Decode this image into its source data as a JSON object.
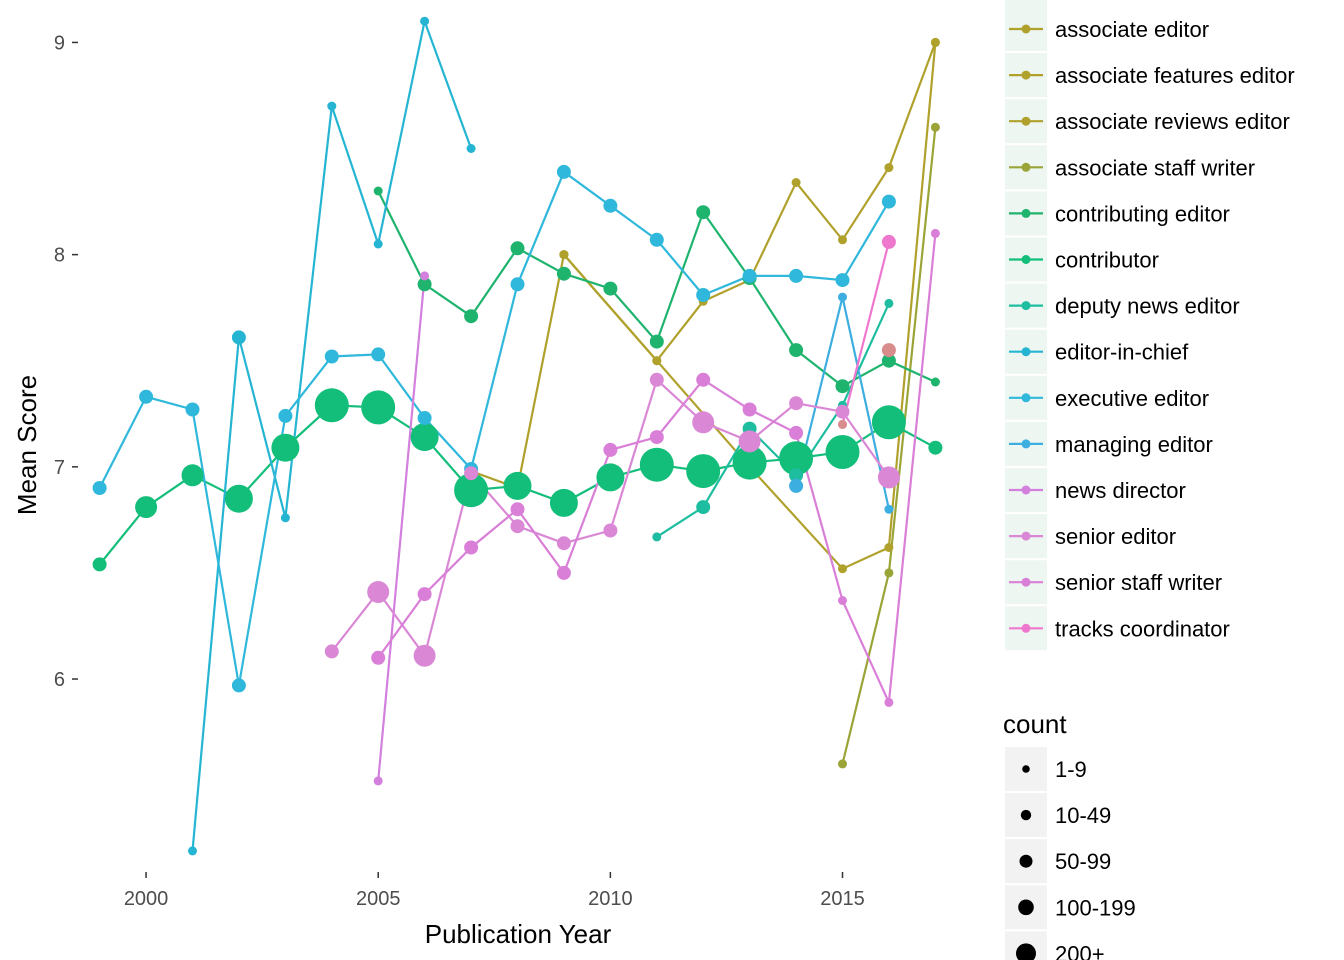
{
  "chart_data": {
    "type": "line",
    "xlabel": "Publication Year",
    "ylabel": "Mean Score",
    "xlim": [
      1998.9,
      2017.1
    ],
    "ylim": [
      5.1,
      9.2
    ],
    "xticks": [
      2000,
      2005,
      2010,
      2015
    ],
    "yticks": [
      6,
      7,
      8,
      9
    ],
    "grid": false,
    "legend_position": "right",
    "size_legend": {
      "title": "count",
      "entries": [
        "1-9",
        "10-49",
        "50-99",
        "100-199",
        "200+"
      ]
    },
    "series": [
      {
        "name": "associate editor",
        "color": "#B0A12D",
        "x": [
          2009,
          2011,
          2013,
          2015,
          2016,
          2017
        ],
        "y": [
          8.0,
          7.5,
          7.0,
          6.52,
          6.62,
          9.0
        ],
        "size": [
          1,
          1,
          1,
          1,
          1,
          1
        ]
      },
      {
        "name": "associate features editor",
        "color": "#B0A12D",
        "x": [
          2009,
          2011,
          2012,
          2013,
          2014,
          2015,
          2016,
          2017
        ],
        "y": [
          8.0,
          7.5,
          7.78,
          7.88,
          8.34,
          8.07,
          8.41,
          9.0
        ],
        "size": [
          1,
          1,
          1,
          1,
          1,
          1,
          1,
          1
        ]
      },
      {
        "name": "associate reviews editor",
        "color": "#B0A12D",
        "x": [
          2007,
          2008,
          2009
        ],
        "y": [
          6.98,
          6.9,
          8.0
        ],
        "size": [
          1,
          1,
          1
        ]
      },
      {
        "name": "associate staff writer",
        "color": "#9AA437",
        "x": [
          2015,
          2016,
          2017
        ],
        "y": [
          5.6,
          6.5,
          8.6
        ],
        "size": [
          1,
          1,
          1
        ]
      },
      {
        "name": "contributing editor",
        "color": "#1FB46E",
        "x": [
          2005,
          2006,
          2007,
          2008,
          2009,
          2010,
          2011,
          2012,
          2013,
          2014,
          2015,
          2016,
          2017
        ],
        "y": [
          8.3,
          7.86,
          7.71,
          8.03,
          7.91,
          7.84,
          7.59,
          8.2,
          7.89,
          7.55,
          7.38,
          7.5,
          7.4
        ],
        "size": [
          1,
          2,
          2,
          2,
          2,
          2,
          2,
          2,
          2,
          2,
          2,
          2,
          1
        ]
      },
      {
        "name": "contributor",
        "color": "#13BE7A",
        "x": [
          1999,
          2000,
          2001,
          2002,
          2003,
          2004,
          2005,
          2006,
          2007,
          2008,
          2009,
          2010,
          2011,
          2012,
          2013,
          2014,
          2015,
          2016,
          2017
        ],
        "y": [
          6.54,
          6.81,
          6.96,
          6.85,
          7.09,
          7.29,
          7.28,
          7.14,
          6.89,
          6.91,
          6.83,
          6.95,
          7.01,
          6.98,
          7.02,
          7.04,
          7.07,
          7.21,
          7.09
        ],
        "size": [
          2,
          3,
          3,
          4,
          4,
          5,
          5,
          4,
          5,
          4,
          4,
          4,
          5,
          5,
          5,
          5,
          5,
          5,
          2
        ]
      },
      {
        "name": "deputy news editor",
        "color": "#1EBDA0",
        "x": [
          2011,
          2012,
          2013,
          2014,
          2015,
          2016
        ],
        "y": [
          6.67,
          6.81,
          7.18,
          6.96,
          7.29,
          7.77
        ],
        "size": [
          1,
          2,
          2,
          2,
          1,
          1
        ]
      },
      {
        "name": "editor-in-chief",
        "color": "#25B5D3",
        "x": [
          2001,
          2002,
          2003,
          2004,
          2005,
          2006,
          2007
        ],
        "y": [
          5.19,
          7.61,
          6.76,
          8.7,
          8.05,
          9.1,
          8.5
        ],
        "size": [
          1,
          2,
          1,
          1,
          1,
          1,
          1
        ]
      },
      {
        "name": "executive editor",
        "color": "#2FB8DB",
        "x": [
          1999,
          2000,
          2001,
          2002,
          2003,
          2004,
          2005,
          2006,
          2007,
          2008,
          2009,
          2010,
          2011,
          2012,
          2013,
          2014,
          2015,
          2016
        ],
        "y": [
          6.9,
          7.33,
          7.27,
          5.97,
          7.24,
          7.52,
          7.53,
          7.23,
          6.99,
          7.86,
          8.39,
          8.23,
          8.07,
          7.81,
          7.9,
          7.9,
          7.88,
          8.25
        ],
        "size": [
          2,
          2,
          2,
          2,
          2,
          2,
          2,
          2,
          2,
          2,
          2,
          2,
          2,
          2,
          2,
          2,
          2,
          2
        ]
      },
      {
        "name": "managing editor",
        "color": "#3DAEE0",
        "x": [
          2014,
          2015,
          2016
        ],
        "y": [
          6.91,
          7.8,
          6.8
        ],
        "size": [
          2,
          1,
          1
        ]
      },
      {
        "name": "news director",
        "color": "#D37FDE",
        "x": [
          2005,
          2006
        ],
        "y": [
          5.52,
          7.9
        ],
        "size": [
          1,
          1
        ]
      },
      {
        "name": "senior editor",
        "color": "#DA88D6",
        "x": [
          2004,
          2005,
          2006,
          2007,
          2008,
          2009,
          2010,
          2011,
          2012,
          2013,
          2014,
          2015,
          2016
        ],
        "y": [
          6.13,
          6.41,
          6.11,
          6.97,
          6.72,
          6.64,
          6.7,
          7.41,
          7.21,
          7.12,
          7.3,
          7.26,
          6.95
        ],
        "size": [
          2,
          3,
          3,
          2,
          2,
          2,
          2,
          2,
          3,
          3,
          2,
          2,
          3
        ]
      },
      {
        "name": "senior staff writer",
        "color": "#DA7FD8",
        "x": [
          2005,
          2006,
          2007,
          2008,
          2009,
          2010,
          2011,
          2012,
          2013,
          2014,
          2015,
          2016,
          2017
        ],
        "y": [
          6.1,
          6.4,
          6.62,
          6.8,
          6.5,
          7.08,
          7.14,
          7.41,
          7.27,
          7.16,
          6.37,
          5.89,
          8.1
        ],
        "size": [
          2,
          2,
          2,
          2,
          2,
          2,
          2,
          2,
          2,
          2,
          1,
          1,
          1
        ]
      },
      {
        "name": "tracks coordinator",
        "color": "#EF78CF",
        "x": [
          2015,
          2016
        ],
        "y": [
          7.2,
          8.06
        ],
        "size": [
          1,
          2
        ]
      }
    ],
    "extra_points": [
      {
        "x": 2015,
        "y": 7.2,
        "color": "#D98C8C",
        "size": 1
      },
      {
        "x": 2016,
        "y": 7.55,
        "color": "#D98C8C",
        "size": 2
      }
    ]
  }
}
